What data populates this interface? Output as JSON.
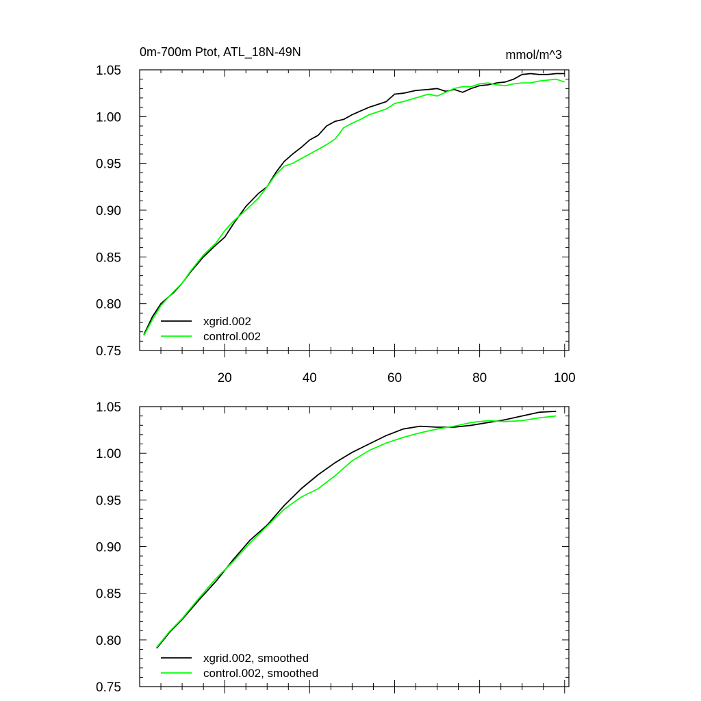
{
  "figure": {
    "title_left": "0m-700m Ptot, ATL_18N-49N",
    "title_right": "mmol/m^3"
  },
  "chart_data": [
    {
      "type": "line",
      "title": "0m-700m Ptot, ATL_18N-49N",
      "units": "mmol/m^3",
      "xlim": [
        0,
        101
      ],
      "ylim": [
        0.75,
        1.05
      ],
      "xticks": [
        20,
        40,
        60,
        80,
        100
      ],
      "yticks": [
        0.75,
        0.8,
        0.85,
        0.9,
        0.95,
        1.0,
        1.05
      ],
      "ytick_labels": [
        "0.75",
        "0.80",
        "0.85",
        "0.90",
        "0.95",
        "1.00",
        "1.05"
      ],
      "xtick_labels": [
        "20",
        "40",
        "60",
        "80",
        "100"
      ],
      "legend_placement": "bottom-left",
      "series": [
        {
          "name": "xgrid.002",
          "color": "#000000",
          "x": [
            1,
            3,
            5,
            8,
            10,
            12,
            15,
            18,
            20,
            22,
            25,
            28,
            30,
            32,
            34,
            36,
            38,
            40,
            42,
            44,
            46,
            48,
            50,
            52,
            54,
            56,
            58,
            60,
            62,
            65,
            68,
            70,
            72,
            74,
            76,
            78,
            80,
            82,
            84,
            86,
            88,
            90,
            92,
            94,
            96,
            98,
            100
          ],
          "y": [
            0.767,
            0.786,
            0.8,
            0.812,
            0.822,
            0.834,
            0.85,
            0.863,
            0.871,
            0.885,
            0.904,
            0.918,
            0.925,
            0.94,
            0.952,
            0.96,
            0.967,
            0.975,
            0.98,
            0.99,
            0.995,
            0.997,
            1.002,
            1.006,
            1.01,
            1.013,
            1.016,
            1.024,
            1.025,
            1.028,
            1.029,
            1.03,
            1.027,
            1.029,
            1.026,
            1.03,
            1.033,
            1.034,
            1.036,
            1.037,
            1.04,
            1.045,
            1.046,
            1.045,
            1.045,
            1.046,
            1.046
          ]
        },
        {
          "name": "control.002",
          "color": "#00ff00",
          "x": [
            1,
            3,
            5,
            8,
            10,
            12,
            15,
            18,
            20,
            22,
            25,
            28,
            30,
            32,
            34,
            36,
            38,
            40,
            42,
            44,
            46,
            48,
            50,
            52,
            54,
            56,
            58,
            60,
            62,
            65,
            68,
            70,
            72,
            74,
            76,
            78,
            80,
            82,
            84,
            86,
            88,
            90,
            92,
            94,
            96,
            98,
            100
          ],
          "y": [
            0.766,
            0.783,
            0.798,
            0.813,
            0.822,
            0.835,
            0.852,
            0.865,
            0.878,
            0.888,
            0.9,
            0.913,
            0.925,
            0.938,
            0.947,
            0.95,
            0.955,
            0.96,
            0.965,
            0.97,
            0.976,
            0.988,
            0.993,
            0.997,
            1.002,
            1.005,
            1.008,
            1.014,
            1.016,
            1.02,
            1.024,
            1.022,
            1.026,
            1.03,
            1.032,
            1.032,
            1.035,
            1.036,
            1.034,
            1.033,
            1.035,
            1.036,
            1.036,
            1.038,
            1.039,
            1.04,
            1.037
          ]
        }
      ]
    },
    {
      "type": "line",
      "xlim": [
        0,
        101
      ],
      "ylim": [
        0.75,
        1.05
      ],
      "yticks": [
        0.75,
        0.8,
        0.85,
        0.9,
        0.95,
        1.0,
        1.05
      ],
      "ytick_labels": [
        "0.75",
        "0.80",
        "0.85",
        "0.90",
        "0.95",
        "1.00",
        "1.05"
      ],
      "legend_placement": "bottom-left",
      "series": [
        {
          "name": "xgrid.002, smoothed",
          "color": "#000000",
          "x": [
            4,
            7,
            10,
            14,
            18,
            22,
            26,
            30,
            34,
            38,
            42,
            46,
            50,
            54,
            58,
            62,
            66,
            70,
            74,
            78,
            82,
            86,
            90,
            94,
            98
          ],
          "y": [
            0.791,
            0.808,
            0.822,
            0.843,
            0.863,
            0.886,
            0.907,
            0.923,
            0.944,
            0.962,
            0.977,
            0.99,
            1.001,
            1.01,
            1.019,
            1.026,
            1.029,
            1.028,
            1.028,
            1.03,
            1.033,
            1.036,
            1.04,
            1.044,
            1.045
          ]
        },
        {
          "name": "control.002, smoothed",
          "color": "#00ff00",
          "x": [
            4,
            7,
            10,
            14,
            18,
            22,
            26,
            30,
            34,
            38,
            42,
            46,
            50,
            54,
            58,
            62,
            66,
            70,
            74,
            78,
            82,
            86,
            90,
            94,
            98
          ],
          "y": [
            0.792,
            0.809,
            0.823,
            0.845,
            0.866,
            0.884,
            0.904,
            0.922,
            0.94,
            0.953,
            0.962,
            0.976,
            0.992,
            1.003,
            1.011,
            1.017,
            1.022,
            1.026,
            1.029,
            1.033,
            1.035,
            1.034,
            1.035,
            1.038,
            1.04
          ]
        }
      ]
    }
  ]
}
